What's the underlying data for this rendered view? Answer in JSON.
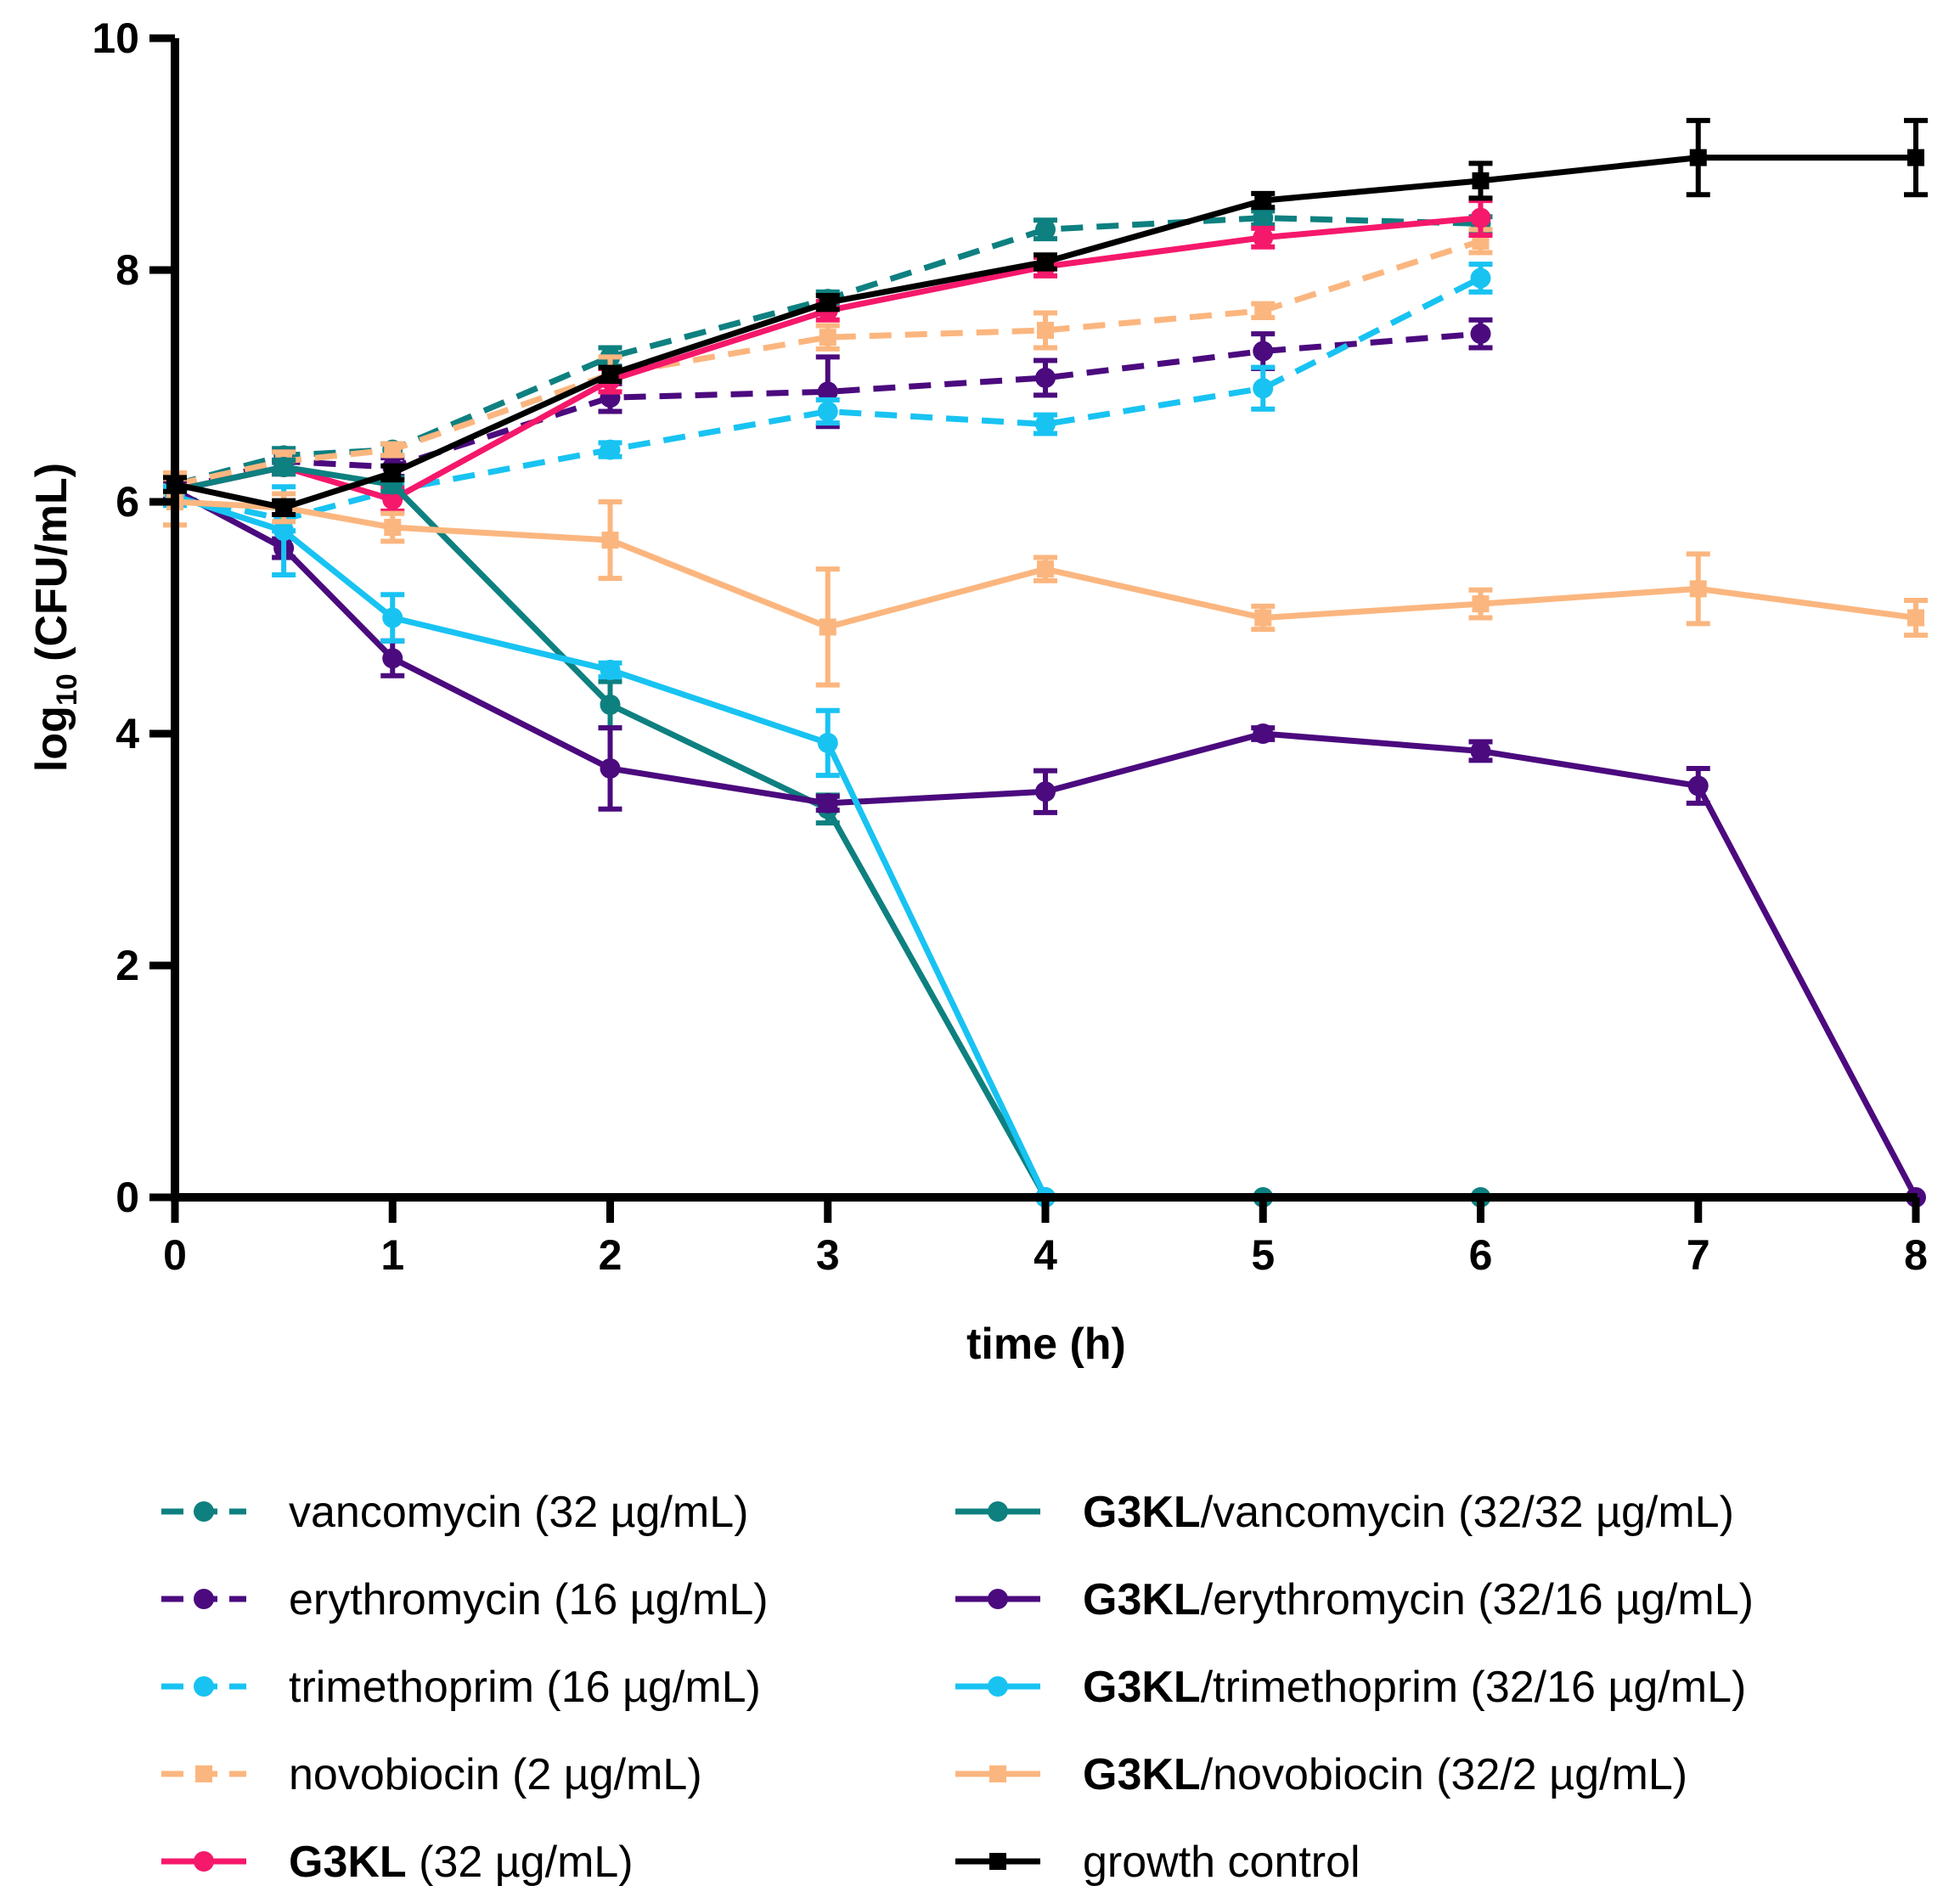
{
  "chart_data": {
    "type": "line",
    "title": "",
    "xlabel": "time (h)",
    "ylabel_main": "log",
    "ylabel_sub": "10",
    "ylabel_rest": " (CFU/mL)",
    "xlim": [
      0,
      8
    ],
    "ylim": [
      0,
      10
    ],
    "xticks": [
      0,
      1,
      2,
      3,
      4,
      5,
      6,
      7,
      8
    ],
    "yticks": [
      0,
      2,
      4,
      6,
      8,
      10
    ],
    "grid": false,
    "legend_position": "bottom",
    "series": [
      {
        "name": "vancomycin (32 µg/mL)",
        "bold": "",
        "rest": "vancomycin (32 µg/mL)",
        "color": "#0e8080",
        "dashed": true,
        "marker": "circle",
        "x": [
          0,
          0.5,
          1,
          2,
          3,
          4,
          5,
          6
        ],
        "y": [
          6.15,
          6.4,
          6.45,
          7.25,
          7.75,
          8.35,
          8.45,
          8.4
        ],
        "err": [
          0.08,
          0.06,
          0.05,
          0.08,
          0.06,
          0.08,
          0.06,
          0.06
        ]
      },
      {
        "name": "erythromycin (16 µg/mL)",
        "bold": "",
        "rest": "erythromycin (16 µg/mL)",
        "color": "#4b0a7e",
        "dashed": true,
        "marker": "circle",
        "x": [
          0,
          0.5,
          1,
          2,
          3,
          4,
          5,
          6
        ],
        "y": [
          6.1,
          6.35,
          6.3,
          6.9,
          6.95,
          7.07,
          7.3,
          7.45
        ],
        "err": [
          0.08,
          0.08,
          0.08,
          0.12,
          0.3,
          0.15,
          0.15,
          0.12
        ]
      },
      {
        "name": "trimethoprim (16 µg/mL)",
        "bold": "",
        "rest": "trimethoprim (16 µg/mL)",
        "color": "#18c3f2",
        "dashed": true,
        "marker": "circle",
        "x": [
          0,
          0.5,
          1,
          2,
          3,
          4,
          5,
          6
        ],
        "y": [
          6.05,
          5.85,
          6.1,
          6.45,
          6.78,
          6.67,
          6.98,
          7.93
        ],
        "err": [
          0.08,
          0.1,
          0.06,
          0.06,
          0.1,
          0.08,
          0.18,
          0.12
        ]
      },
      {
        "name": "novobiocin (2 µg/mL)",
        "bold": "",
        "rest": "novobiocin (2 µg/mL)",
        "color": "#fbb67f",
        "dashed": true,
        "marker": "square",
        "x": [
          0,
          0.5,
          1,
          2,
          3,
          4,
          5,
          6
        ],
        "y": [
          6.15,
          6.35,
          6.45,
          7.1,
          7.42,
          7.48,
          7.65,
          8.25
        ],
        "err": [
          0.1,
          0.08,
          0.05,
          0.15,
          0.1,
          0.15,
          0.06,
          0.1
        ]
      },
      {
        "name": "G3KL (32 µg/mL)",
        "bold": "G3KL",
        "rest": " (32 µg/mL)",
        "color": "#f5186b",
        "dashed": false,
        "marker": "circle",
        "x": [
          0,
          0.5,
          1,
          2,
          3,
          4,
          5,
          6
        ],
        "y": [
          6.1,
          6.3,
          6.02,
          7.05,
          7.65,
          8.03,
          8.28,
          8.45
        ],
        "err": [
          0.08,
          0.06,
          0.1,
          0.1,
          0.08,
          0.08,
          0.08,
          0.15
        ]
      },
      {
        "name": "G3KL/vancomycin (32/32 µg/mL)",
        "bold": "G3KL",
        "rest": "/vancomycin (32/32 µg/mL)",
        "color": "#0e8080",
        "dashed": false,
        "marker": "circle",
        "x": [
          0,
          0.5,
          1,
          2,
          3,
          4,
          5,
          6
        ],
        "y": [
          6.1,
          6.3,
          6.15,
          4.25,
          3.35,
          0,
          0,
          0
        ],
        "err": [
          0.08,
          0.06,
          0.06,
          0.2,
          0.12,
          0,
          0,
          0
        ]
      },
      {
        "name": "G3KL/erythromycin (32/16 µg/mL)",
        "bold": "G3KL",
        "rest": "/erythromycin (32/16 µg/mL)",
        "color": "#4b0a7e",
        "dashed": false,
        "marker": "circle",
        "x": [
          0,
          0.5,
          1,
          2,
          3,
          4,
          5,
          6,
          7,
          8
        ],
        "y": [
          6.1,
          5.6,
          4.65,
          3.7,
          3.4,
          3.5,
          4.0,
          3.85,
          3.55,
          0
        ],
        "err": [
          0.08,
          0.08,
          0.15,
          0.35,
          0.06,
          0.18,
          0.05,
          0.08,
          0.15,
          0
        ]
      },
      {
        "name": "G3KL/trimethoprim (32/16 µg/mL)",
        "bold": "G3KL",
        "rest": "/trimethoprim (32/16 µg/mL)",
        "color": "#18c3f2",
        "dashed": false,
        "marker": "circle",
        "x": [
          0,
          0.5,
          1,
          2,
          3,
          4
        ],
        "y": [
          6.05,
          5.75,
          5.0,
          4.55,
          3.92,
          0
        ],
        "err": [
          0.08,
          0.38,
          0.2,
          0.06,
          0.28,
          0
        ]
      },
      {
        "name": "G3KL/novobiocin (32/2 µg/mL)",
        "bold": "G3KL",
        "rest": "/novobiocin (32/2 µg/mL)",
        "color": "#fbb67f",
        "dashed": false,
        "marker": "square",
        "x": [
          0,
          0.5,
          1,
          2,
          3,
          4,
          5,
          6,
          7,
          8
        ],
        "y": [
          6.0,
          5.95,
          5.78,
          5.67,
          4.92,
          5.42,
          5.0,
          5.12,
          5.25,
          5.0
        ],
        "err": [
          0.2,
          0.12,
          0.12,
          0.33,
          0.5,
          0.1,
          0.1,
          0.12,
          0.3,
          0.15
        ]
      },
      {
        "name": "growth control",
        "bold": "",
        "rest": "growth control",
        "color": "#000000",
        "dashed": false,
        "marker": "square",
        "x": [
          0,
          0.5,
          1,
          2,
          3,
          4,
          5,
          6,
          7,
          8
        ],
        "y": [
          6.15,
          5.95,
          6.25,
          7.1,
          7.72,
          8.07,
          8.6,
          8.77,
          8.97,
          8.97
        ],
        "err": [
          0.06,
          0.06,
          0.06,
          0.06,
          0.06,
          0.06,
          0.06,
          0.15,
          0.32,
          0.32
        ]
      }
    ]
  }
}
